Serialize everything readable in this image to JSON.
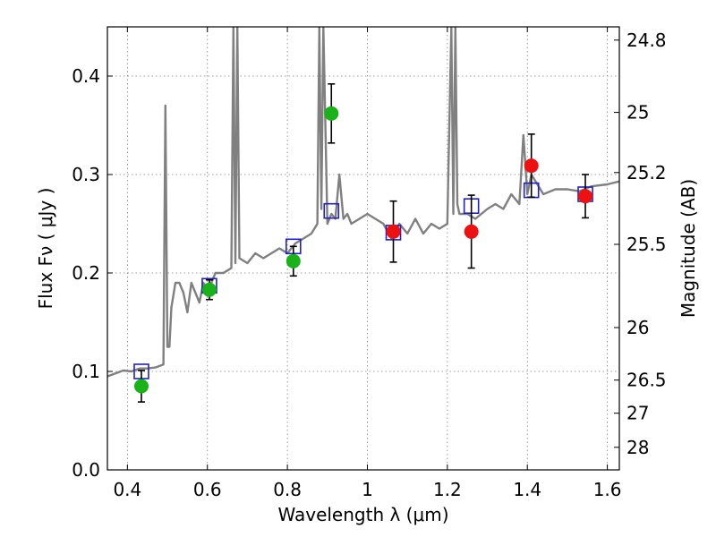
{
  "chart_data": {
    "type": "scatter",
    "xlabel": "Wavelength  λ (μm)",
    "ylabel": "Flux  Fν  ( μJy )",
    "y2label": "Magnitude (AB)",
    "xlim": [
      0.35,
      1.63
    ],
    "ylim": [
      0.0,
      0.45
    ],
    "grid": true,
    "x_ticks": [
      0.4,
      0.6,
      0.8,
      1.0,
      1.2,
      1.4,
      1.6
    ],
    "x_tick_labels": [
      "0.4",
      "0.6",
      "0.8",
      "1",
      "1.2",
      "1.4",
      "1.6"
    ],
    "y_ticks": [
      0.0,
      0.1,
      0.2,
      0.3,
      0.4
    ],
    "y_tick_labels": [
      "0.0",
      "0.1",
      "0.2",
      "0.3",
      "0.4"
    ],
    "mag_ticks": [
      24.8,
      25,
      25.2,
      25.5,
      26,
      26.5,
      27,
      28
    ],
    "mag_tick_labels": [
      "24.8",
      "25",
      "25.2",
      "25.5",
      "26",
      "26.5",
      "27",
      "28"
    ],
    "colors": {
      "spectrum": "#808080",
      "green": "#19b319",
      "red": "#ee1111",
      "model_box": "#1f1fcc",
      "errorbar": "#000000",
      "grid": "#7f7f7f"
    },
    "spectrum": {
      "name": "",
      "x": [
        0.35,
        0.37,
        0.39,
        0.41,
        0.43,
        0.45,
        0.47,
        0.49,
        0.495,
        0.5,
        0.505,
        0.51,
        0.52,
        0.53,
        0.54,
        0.55,
        0.56,
        0.57,
        0.58,
        0.59,
        0.6,
        0.62,
        0.64,
        0.66,
        0.665,
        0.67,
        0.675,
        0.68,
        0.7,
        0.72,
        0.74,
        0.76,
        0.78,
        0.8,
        0.82,
        0.84,
        0.86,
        0.875,
        0.88,
        0.885,
        0.89,
        0.9,
        0.91,
        0.92,
        0.93,
        0.94,
        0.95,
        0.96,
        0.98,
        1.0,
        1.02,
        1.04,
        1.06,
        1.08,
        1.1,
        1.12,
        1.14,
        1.16,
        1.18,
        1.2,
        1.21,
        1.215,
        1.22,
        1.225,
        1.23,
        1.25,
        1.27,
        1.3,
        1.32,
        1.34,
        1.36,
        1.38,
        1.39,
        1.4,
        1.41,
        1.44,
        1.47,
        1.5,
        1.53,
        1.56,
        1.6,
        1.63
      ],
      "y": [
        0.095,
        0.098,
        0.101,
        0.1,
        0.103,
        0.103,
        0.104,
        0.107,
        0.37,
        0.125,
        0.125,
        0.165,
        0.19,
        0.19,
        0.18,
        0.16,
        0.19,
        0.18,
        0.17,
        0.19,
        0.18,
        0.2,
        0.2,
        0.205,
        0.45,
        0.21,
        0.45,
        0.215,
        0.21,
        0.22,
        0.215,
        0.22,
        0.225,
        0.22,
        0.23,
        0.235,
        0.24,
        0.25,
        0.45,
        0.265,
        0.45,
        0.25,
        0.26,
        0.255,
        0.3,
        0.255,
        0.26,
        0.25,
        0.255,
        0.26,
        0.255,
        0.25,
        0.235,
        0.25,
        0.24,
        0.255,
        0.24,
        0.25,
        0.245,
        0.25,
        0.45,
        0.26,
        0.45,
        0.27,
        0.26,
        0.26,
        0.255,
        0.265,
        0.27,
        0.265,
        0.28,
        0.27,
        0.34,
        0.28,
        0.3,
        0.28,
        0.285,
        0.285,
        0.283,
        0.288,
        0.29,
        0.293
      ]
    },
    "photometry_green": [
      {
        "x": 0.435,
        "y": 0.085,
        "err": 0.016
      },
      {
        "x": 0.605,
        "y": 0.183,
        "err": 0.01
      },
      {
        "x": 0.815,
        "y": 0.212,
        "err": 0.015
      },
      {
        "x": 0.91,
        "y": 0.362,
        "err": 0.03
      }
    ],
    "photometry_red": [
      {
        "x": 1.065,
        "y": 0.242,
        "err": 0.031
      },
      {
        "x": 1.26,
        "y": 0.242,
        "err": 0.037
      },
      {
        "x": 1.41,
        "y": 0.309,
        "err": 0.032
      },
      {
        "x": 1.545,
        "y": 0.278,
        "err": 0.022
      }
    ],
    "model_points": [
      {
        "x": 0.435,
        "y": 0.1
      },
      {
        "x": 0.605,
        "y": 0.187
      },
      {
        "x": 0.815,
        "y": 0.227
      },
      {
        "x": 0.91,
        "y": 0.263
      },
      {
        "x": 1.065,
        "y": 0.241
      },
      {
        "x": 1.26,
        "y": 0.268
      },
      {
        "x": 1.41,
        "y": 0.284
      },
      {
        "x": 1.545,
        "y": 0.28
      }
    ]
  }
}
